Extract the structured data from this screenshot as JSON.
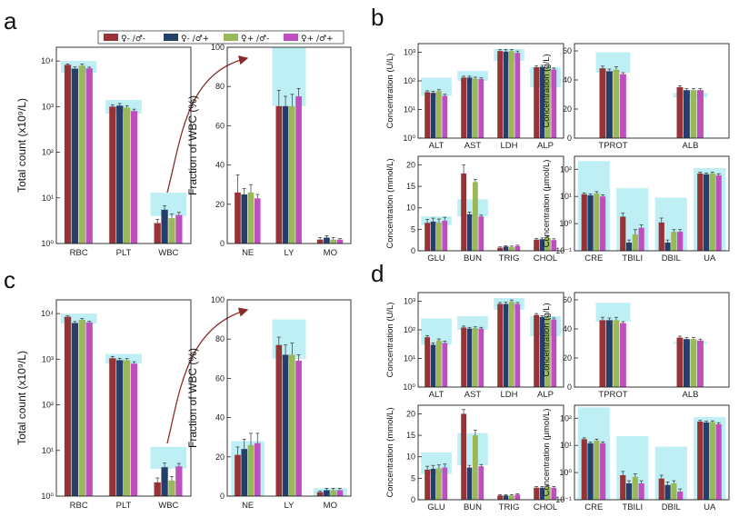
{
  "panel_labels": {
    "a": "a",
    "b": "b",
    "c": "c",
    "d": "d"
  },
  "legend": {
    "items": [
      {
        "label": "♀- /♂-",
        "color": "#973336"
      },
      {
        "label": "♀- /♂+",
        "color": "#263f6a"
      },
      {
        "label": "♀+ /♂-",
        "color": "#9ab85a"
      },
      {
        "label": "♀+ /♂+",
        "color": "#bf4fbf"
      }
    ]
  },
  "colors": {
    "ref_band": "#b6edf3",
    "arrow": "#8a2b2b"
  },
  "chart_data": [
    {
      "id": "a_total",
      "type": "bar",
      "log": true,
      "ylabel": "Total count (x10⁹/L)",
      "ylim": [
        1,
        20000
      ],
      "yticks": [
        {
          "v": 1,
          "l": "10⁰"
        },
        {
          "v": 10,
          "l": "10¹"
        },
        {
          "v": 100,
          "l": "10²"
        },
        {
          "v": 1000,
          "l": "10³"
        },
        {
          "v": 10000,
          "l": "10⁴"
        }
      ],
      "categories": [
        "RBC",
        "PLT",
        "WBC"
      ],
      "values": [
        [
          8200,
          6800,
          7900,
          6900
        ],
        [
          1000,
          1050,
          950,
          800
        ],
        [
          2.8,
          5.5,
          3.6,
          4.2
        ]
      ],
      "errors": [
        [
          400,
          600,
          700,
          400
        ],
        [
          100,
          120,
          100,
          80
        ],
        [
          0.6,
          1.2,
          0.8,
          0.6
        ]
      ],
      "ref": [
        [
          5500,
          10000
        ],
        [
          700,
          1400
        ],
        [
          4,
          13
        ]
      ]
    },
    {
      "id": "a_frac",
      "type": "bar",
      "log": false,
      "ylabel": "Fraction of WBC (%)",
      "ylim": [
        0,
        100
      ],
      "yticks": [
        {
          "v": 0,
          "l": "0"
        },
        {
          "v": 20,
          "l": "20"
        },
        {
          "v": 40,
          "l": "40"
        },
        {
          "v": 60,
          "l": "60"
        },
        {
          "v": 80,
          "l": "80"
        },
        {
          "v": 100,
          "l": "100"
        }
      ],
      "categories": [
        "NE",
        "LY",
        "MO"
      ],
      "values": [
        [
          26,
          25,
          26,
          23
        ],
        [
          70,
          70,
          70,
          75
        ],
        [
          2,
          3,
          2,
          2
        ]
      ],
      "errors": [
        [
          9,
          3,
          4,
          2
        ],
        [
          8,
          5,
          6,
          4
        ],
        [
          1,
          1,
          1,
          0.5
        ]
      ],
      "ref": [
        [
          null,
          null
        ],
        [
          70,
          100
        ],
        [
          null,
          null
        ]
      ]
    },
    {
      "id": "b_ul",
      "type": "bar",
      "log": true,
      "ylabel": "Concentration (U/L)",
      "ylim": [
        1,
        2000
      ],
      "yticks": [
        {
          "v": 1,
          "l": "10⁰"
        },
        {
          "v": 10,
          "l": "10¹"
        },
        {
          "v": 100,
          "l": "10²"
        },
        {
          "v": 1000,
          "l": "10³"
        }
      ],
      "categories": [
        "ALT",
        "AST",
        "LDH",
        "ALP"
      ],
      "values": [
        [
          40,
          38,
          44,
          30
        ],
        [
          130,
          130,
          120,
          115
        ],
        [
          1100,
          1050,
          1100,
          950
        ],
        [
          300,
          310,
          280,
          250
        ]
      ],
      "errors": [
        [
          5,
          5,
          5,
          4
        ],
        [
          15,
          15,
          15,
          12
        ],
        [
          150,
          200,
          150,
          150
        ],
        [
          40,
          40,
          30,
          30
        ]
      ],
      "ref": [
        [
          30,
          130
        ],
        [
          100,
          220
        ],
        [
          500,
          1300
        ],
        [
          60,
          300
        ]
      ]
    },
    {
      "id": "b_gl",
      "type": "bar",
      "log": false,
      "ylabel": "Concentration (g/L)",
      "ylim": [
        0,
        65
      ],
      "yticks": [
        {
          "v": 0,
          "l": "0"
        },
        {
          "v": 20,
          "l": "20"
        },
        {
          "v": 40,
          "l": "40"
        },
        {
          "v": 60,
          "l": "60"
        }
      ],
      "categories": [
        "TPROT",
        "ALB"
      ],
      "values": [
        [
          48,
          46,
          47,
          44
        ],
        [
          35,
          33,
          33,
          33
        ]
      ],
      "errors": [
        [
          1.5,
          1.5,
          2,
          1
        ],
        [
          1,
          1,
          1,
          1
        ]
      ],
      "ref": [
        [
          45,
          59
        ],
        [
          28,
          31
        ]
      ]
    },
    {
      "id": "b_mmol",
      "type": "bar",
      "log": false,
      "ylabel": "Concentration (mmol/L)",
      "ylim": [
        0,
        22
      ],
      "yticks": [
        {
          "v": 0,
          "l": "0"
        },
        {
          "v": 5,
          "l": "5"
        },
        {
          "v": 10,
          "l": "10"
        },
        {
          "v": 15,
          "l": "15"
        },
        {
          "v": 20,
          "l": "20"
        }
      ],
      "categories": [
        "GLU",
        "BUN",
        "TRIG",
        "CHOL"
      ],
      "values": [
        [
          6.5,
          6.8,
          6.6,
          7.0
        ],
        [
          18,
          8.5,
          16,
          8
        ],
        [
          0.7,
          1.0,
          0.9,
          1.1
        ],
        [
          2.6,
          2.7,
          3.0,
          2.5
        ]
      ],
      "errors": [
        [
          0.8,
          0.8,
          0.8,
          0.8
        ],
        [
          2,
          0.5,
          0.6,
          0.3
        ],
        [
          0.2,
          0.2,
          0.2,
          0.2
        ],
        [
          0.3,
          0.3,
          0.4,
          0.3
        ]
      ],
      "ref": [
        [
          6,
          8
        ],
        [
          8,
          12
        ],
        [
          null,
          null
        ],
        [
          null,
          null
        ]
      ]
    },
    {
      "id": "b_umol",
      "type": "bar",
      "log": true,
      "ylabel": "Concentration (μmol/L)",
      "ylim": [
        0.1,
        300
      ],
      "yticks": [
        {
          "v": 0.1,
          "l": "10⁻¹"
        },
        {
          "v": 1,
          "l": "10⁰"
        },
        {
          "v": 10,
          "l": "10¹"
        },
        {
          "v": 100,
          "l": "10²"
        }
      ],
      "categories": [
        "CRE",
        "TBILI",
        "DBIL",
        "UA"
      ],
      "values": [
        [
          12,
          11,
          13,
          10
        ],
        [
          1.8,
          0.2,
          0.4,
          0.7
        ],
        [
          1.1,
          0.2,
          0.5,
          0.5
        ],
        [
          70,
          65,
          70,
          60
        ]
      ],
      "errors": [
        [
          1.5,
          1.5,
          2,
          1.5
        ],
        [
          0.6,
          0.05,
          0.2,
          0.2
        ],
        [
          0.5,
          0.05,
          0.1,
          0.1
        ],
        [
          8,
          8,
          8,
          8
        ]
      ],
      "ref": [
        [
          null,
          200
        ],
        [
          null,
          20
        ],
        [
          null,
          9
        ],
        [
          null,
          110
        ]
      ]
    },
    {
      "id": "c_total",
      "type": "bar",
      "log": true,
      "ylabel": "Total count (x10⁹/L)",
      "ylim": [
        1,
        20000
      ],
      "yticks": [
        {
          "v": 1,
          "l": "10⁰"
        },
        {
          "v": 10,
          "l": "10¹"
        },
        {
          "v": 100,
          "l": "10²"
        },
        {
          "v": 1000,
          "l": "10³"
        },
        {
          "v": 10000,
          "l": "10⁴"
        }
      ],
      "categories": [
        "RBC",
        "PLT",
        "WBC"
      ],
      "values": [
        [
          8500,
          6200,
          7300,
          6400
        ],
        [
          1050,
          950,
          950,
          800
        ],
        [
          2.0,
          4.3,
          2.2,
          4.5
        ]
      ],
      "errors": [
        [
          400,
          500,
          500,
          400
        ],
        [
          100,
          100,
          80,
          80
        ],
        [
          0.5,
          1.0,
          0.5,
          0.7
        ]
      ],
      "ref": [
        [
          6000,
          10000
        ],
        [
          800,
          1300
        ],
        [
          4,
          12
        ]
      ]
    },
    {
      "id": "c_frac",
      "type": "bar",
      "log": false,
      "ylabel": "Fraction of WBC (%)",
      "ylim": [
        0,
        100
      ],
      "yticks": [
        {
          "v": 0,
          "l": "0"
        },
        {
          "v": 20,
          "l": "20"
        },
        {
          "v": 40,
          "l": "40"
        },
        {
          "v": 60,
          "l": "60"
        },
        {
          "v": 80,
          "l": "80"
        },
        {
          "v": 100,
          "l": "100"
        }
      ],
      "categories": [
        "NE",
        "LY",
        "MO"
      ],
      "values": [
        [
          21,
          24,
          26,
          27
        ],
        [
          77,
          72,
          72,
          69
        ],
        [
          2,
          3,
          3,
          3
        ]
      ],
      "errors": [
        [
          4,
          5,
          6,
          5
        ],
        [
          4,
          5,
          6,
          3
        ],
        [
          0.5,
          1,
          1,
          1
        ]
      ],
      "ref": [
        [
          null,
          28
        ],
        [
          70,
          90
        ],
        [
          null,
          4
        ]
      ]
    },
    {
      "id": "d_ul",
      "type": "bar",
      "log": true,
      "ylabel": "Concentration (U/L)",
      "ylim": [
        1,
        2000
      ],
      "yticks": [
        {
          "v": 1,
          "l": "10⁰"
        },
        {
          "v": 10,
          "l": "10¹"
        },
        {
          "v": 100,
          "l": "10²"
        },
        {
          "v": 1000,
          "l": "10³"
        }
      ],
      "categories": [
        "ALT",
        "AST",
        "LDH",
        "ALP"
      ],
      "values": [
        [
          55,
          30,
          42,
          35
        ],
        [
          120,
          110,
          115,
          110
        ],
        [
          800,
          800,
          950,
          800
        ],
        [
          330,
          280,
          270,
          230
        ]
      ],
      "errors": [
        [
          8,
          5,
          6,
          5
        ],
        [
          15,
          12,
          12,
          12
        ],
        [
          100,
          120,
          150,
          100
        ],
        [
          40,
          30,
          30,
          30
        ]
      ],
      "ref": [
        [
          30,
          250
        ],
        [
          100,
          300
        ],
        [
          500,
          1300
        ],
        [
          60,
          300
        ]
      ]
    },
    {
      "id": "d_gl",
      "type": "bar",
      "log": false,
      "ylabel": "Concentration (g/L)",
      "ylim": [
        0,
        65
      ],
      "yticks": [
        {
          "v": 0,
          "l": "0"
        },
        {
          "v": 20,
          "l": "20"
        },
        {
          "v": 40,
          "l": "40"
        },
        {
          "v": 60,
          "l": "60"
        }
      ],
      "categories": [
        "TPROT",
        "ALB"
      ],
      "values": [
        [
          46,
          46,
          46,
          44
        ],
        [
          34,
          33,
          33,
          32
        ]
      ],
      "errors": [
        [
          2,
          1.5,
          2,
          1
        ],
        [
          1,
          1,
          1,
          1
        ]
      ],
      "ref": [
        [
          45,
          58
        ],
        [
          30,
          31
        ]
      ]
    },
    {
      "id": "d_mmol",
      "type": "bar",
      "log": false,
      "ylabel": "Concentration (mmol/L)",
      "ylim": [
        0,
        22
      ],
      "yticks": [
        {
          "v": 0,
          "l": "0"
        },
        {
          "v": 5,
          "l": "5"
        },
        {
          "v": 10,
          "l": "10"
        },
        {
          "v": 15,
          "l": "15"
        },
        {
          "v": 20,
          "l": "20"
        }
      ],
      "categories": [
        "GLU",
        "BUN",
        "TRIG",
        "CHOL"
      ],
      "values": [
        [
          7.0,
          7.2,
          7.3,
          7.5
        ],
        [
          20,
          7.5,
          15,
          7.8
        ],
        [
          1.0,
          1.0,
          1.0,
          1.2
        ],
        [
          2.8,
          2.8,
          3.0,
          2.8
        ]
      ],
      "errors": [
        [
          0.8,
          0.8,
          0.8,
          0.8
        ],
        [
          1,
          0.5,
          1.2,
          0.4
        ],
        [
          0.2,
          0.2,
          0.2,
          0.2
        ],
        [
          0.3,
          0.3,
          0.3,
          0.3
        ]
      ],
      "ref": [
        [
          6,
          11
        ],
        [
          8,
          15.5
        ],
        [
          null,
          null
        ],
        [
          null,
          null
        ]
      ]
    },
    {
      "id": "d_umol",
      "type": "bar",
      "log": true,
      "ylabel": "Concentration (μmol/L)",
      "ylim": [
        0.1,
        300
      ],
      "yticks": [
        {
          "v": 0.1,
          "l": "10⁻¹"
        },
        {
          "v": 1,
          "l": "10⁰"
        },
        {
          "v": 10,
          "l": "10¹"
        },
        {
          "v": 100,
          "l": "10²"
        }
      ],
      "categories": [
        "CRE",
        "TBILI",
        "DBIL",
        "UA"
      ],
      "values": [
        [
          17,
          12,
          15,
          12
        ],
        [
          0.8,
          0.4,
          0.7,
          0.4
        ],
        [
          0.6,
          0.35,
          0.4,
          0.2
        ],
        [
          75,
          70,
          72,
          60
        ]
      ],
      "errors": [
        [
          2,
          1.5,
          2,
          1.5
        ],
        [
          0.3,
          0.1,
          0.2,
          0.1
        ],
        [
          0.2,
          0.1,
          0.1,
          0.05
        ],
        [
          8,
          8,
          8,
          8
        ]
      ],
      "ref": [
        [
          null,
          250
        ],
        [
          null,
          22
        ],
        [
          null,
          9
        ],
        [
          null,
          110
        ]
      ]
    }
  ]
}
